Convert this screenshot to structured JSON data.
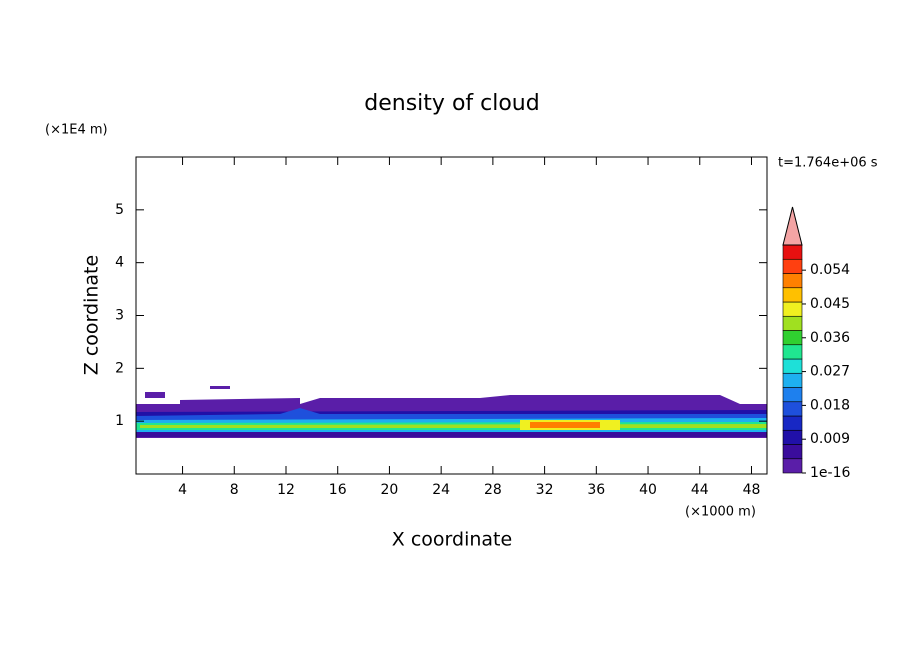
{
  "chart_data": {
    "type": "contour",
    "title": "density of cloud",
    "x_label": "X coordinate",
    "y_label": "Z coordinate",
    "x_unit": "(×1000 m)",
    "y_unit": "(×1E4 m)",
    "time_label": "t=1.764e+06 s",
    "xlim": [
      0.4,
      49.2
    ],
    "xticks": [
      4,
      8,
      12,
      16,
      20,
      24,
      28,
      32,
      36,
      40,
      44,
      48
    ],
    "ylim": [
      0,
      6
    ],
    "yticks": [
      1,
      2,
      3,
      4,
      5
    ],
    "colorbar": {
      "lim": [
        0,
        0.0607
      ],
      "ticks": [
        {
          "value": 1e-16,
          "label": "1e-16"
        },
        0.009,
        0.018,
        0.027,
        0.036,
        0.045,
        0.054
      ],
      "colors": [
        "#5a1ea8",
        "#3a0c9c",
        "#2010a8",
        "#1828c4",
        "#1e50dc",
        "#1e80ee",
        "#1eb0f0",
        "#1ee0d8",
        "#20e690",
        "#30d030",
        "#a0e020",
        "#f0f020",
        "#ffc000",
        "#ff8000",
        "#ff4010",
        "#e81010"
      ],
      "extend_color": "#f4a4a4"
    }
  }
}
